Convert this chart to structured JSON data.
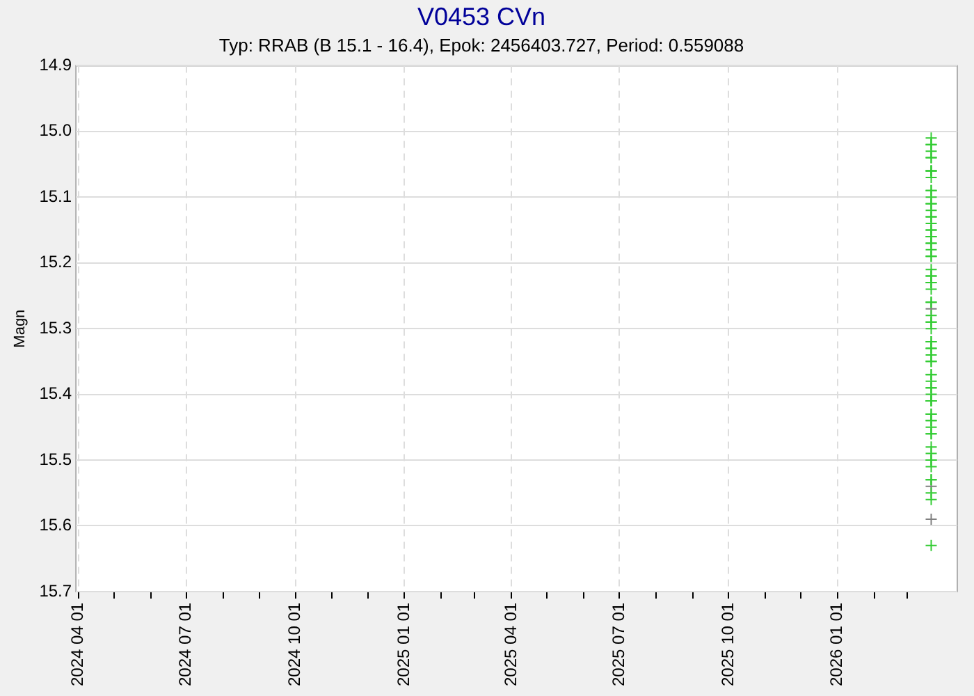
{
  "chart_data": {
    "type": "scatter",
    "title": "V0453 CVn",
    "subtitle": "Typ: RRAB (B 15.1 - 16.4), Epok: 2456403.727, Period: 0.559088",
    "ylabel": "Magn",
    "xlim": [
      "2024-03-30",
      "2026-04-12"
    ],
    "xticks": [
      {
        "value": "2024-04-01",
        "label": "2024 04 01"
      },
      {
        "value": "2024-05-01",
        "label": null
      },
      {
        "value": "2024-06-01",
        "label": null
      },
      {
        "value": "2024-07-01",
        "label": "2024 07 01"
      },
      {
        "value": "2024-08-01",
        "label": null
      },
      {
        "value": "2024-09-01",
        "label": null
      },
      {
        "value": "2024-10-01",
        "label": "2024 10 01"
      },
      {
        "value": "2024-11-01",
        "label": null
      },
      {
        "value": "2024-12-01",
        "label": null
      },
      {
        "value": "2025-01-01",
        "label": "2025 01 01"
      },
      {
        "value": "2025-02-01",
        "label": null
      },
      {
        "value": "2025-03-01",
        "label": null
      },
      {
        "value": "2025-04-01",
        "label": "2025 04 01"
      },
      {
        "value": "2025-05-01",
        "label": null
      },
      {
        "value": "2025-06-01",
        "label": null
      },
      {
        "value": "2025-07-01",
        "label": "2025 07 01"
      },
      {
        "value": "2025-08-01",
        "label": null
      },
      {
        "value": "2025-09-01",
        "label": null
      },
      {
        "value": "2025-10-01",
        "label": "2025 10 01"
      },
      {
        "value": "2025-11-01",
        "label": null
      },
      {
        "value": "2025-12-01",
        "label": null
      },
      {
        "value": "2026-01-01",
        "label": "2026 01 01"
      },
      {
        "value": "2026-02-01",
        "label": null
      },
      {
        "value": "2026-03-01",
        "label": null
      }
    ],
    "ylim": [
      15.7,
      14.9
    ],
    "yticks": [
      {
        "value": 14.9,
        "label": "14.9"
      },
      {
        "value": 15.0,
        "label": "15.0"
      },
      {
        "value": 15.1,
        "label": "15.1"
      },
      {
        "value": 15.2,
        "label": "15.2"
      },
      {
        "value": 15.3,
        "label": "15.3"
      },
      {
        "value": 15.4,
        "label": "15.4"
      },
      {
        "value": 15.5,
        "label": "15.5"
      },
      {
        "value": 15.6,
        "label": "15.6"
      },
      {
        "value": 15.7,
        "label": "15.7"
      }
    ],
    "grid": true,
    "marker": "cross",
    "series": [
      {
        "color": "#33cc33",
        "x": [
          "2026-03-21",
          "2026-03-21",
          "2026-03-21",
          "2026-03-21",
          "2026-03-21",
          "2026-03-21",
          "2026-03-21",
          "2026-03-21",
          "2026-03-21",
          "2026-03-21",
          "2026-03-21",
          "2026-03-21",
          "2026-03-21",
          "2026-03-21",
          "2026-03-21",
          "2026-03-21",
          "2026-03-21",
          "2026-03-21",
          "2026-03-21",
          "2026-03-21",
          "2026-03-21",
          "2026-03-21",
          "2026-03-21",
          "2026-03-21",
          "2026-03-21",
          "2026-03-21",
          "2026-03-21",
          "2026-03-21",
          "2026-03-21",
          "2026-03-21",
          "2026-03-21",
          "2026-03-21",
          "2026-03-21",
          "2026-03-21",
          "2026-03-21",
          "2026-03-21",
          "2026-03-21",
          "2026-03-21",
          "2026-03-21",
          "2026-03-21",
          "2026-03-21",
          "2026-03-21",
          "2026-03-21",
          "2026-03-21",
          "2026-03-21",
          "2026-03-21",
          "2026-03-21",
          "2026-03-21",
          "2026-03-21",
          "2026-03-21",
          "2026-03-21",
          "2026-03-21",
          "2026-03-21",
          "2026-03-21",
          "2026-03-21",
          "2026-03-21",
          "2026-03-21",
          "2026-03-21",
          "2026-03-21",
          "2026-03-21",
          "2026-03-21",
          "2026-03-21",
          "2026-03-21",
          "2026-03-21",
          "2026-03-21",
          "2026-03-21",
          "2026-03-21",
          "2026-03-21",
          "2026-03-21",
          "2026-03-21",
          "2026-03-21",
          "2026-03-21",
          "2026-03-21"
        ],
        "values": [
          15.01,
          15.02,
          15.02,
          15.03,
          15.04,
          15.04,
          15.06,
          15.06,
          15.06,
          15.07,
          15.09,
          15.09,
          15.1,
          15.11,
          15.11,
          15.12,
          15.13,
          15.13,
          15.14,
          15.15,
          15.15,
          15.16,
          15.16,
          15.17,
          15.17,
          15.18,
          15.19,
          15.19,
          15.21,
          15.22,
          15.22,
          15.23,
          15.23,
          15.24,
          15.26,
          15.26,
          15.28,
          15.29,
          15.29,
          15.3,
          15.32,
          15.32,
          15.33,
          15.33,
          15.34,
          15.35,
          15.35,
          15.37,
          15.37,
          15.38,
          15.39,
          15.39,
          15.4,
          15.41,
          15.41,
          15.41,
          15.43,
          15.43,
          15.44,
          15.44,
          15.45,
          15.46,
          15.46,
          15.48,
          15.49,
          15.5,
          15.5,
          15.51,
          15.53,
          15.53,
          15.55,
          15.56,
          15.63
        ]
      },
      {
        "color": "#808080",
        "x": [
          "2026-03-21",
          "2026-03-21",
          "2026-03-21"
        ],
        "values": [
          15.27,
          15.54,
          15.59
        ]
      }
    ]
  }
}
